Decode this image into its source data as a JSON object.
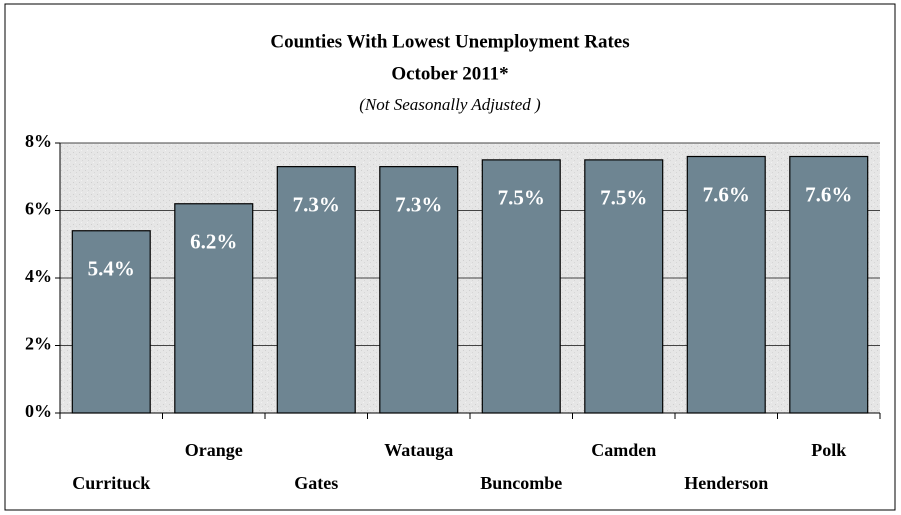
{
  "chart_data": {
    "type": "bar",
    "title": "Counties With Lowest Unemployment Rates",
    "subtitle": "October 2011*",
    "note": "(Not Seasonally Adjusted )",
    "categories": [
      "Currituck",
      "Orange",
      "Gates",
      "Watauga",
      "Buncombe",
      "Camden",
      "Henderson",
      "Polk"
    ],
    "values": [
      5.4,
      6.2,
      7.3,
      7.3,
      7.5,
      7.5,
      7.6,
      7.6
    ],
    "value_labels": [
      "5.4%",
      "6.2%",
      "7.3%",
      "7.3%",
      "7.5%",
      "7.5%",
      "7.6%",
      "7.6%"
    ],
    "color": "#6e8592",
    "ylim": [
      0,
      8
    ],
    "yticks": [
      {
        "value": 0,
        "label": "0%"
      },
      {
        "value": 2,
        "label": "2%"
      },
      {
        "value": 4,
        "label": "4%"
      },
      {
        "value": 6,
        "label": "6%"
      },
      {
        "value": 8,
        "label": "8%"
      }
    ],
    "grid": true
  }
}
